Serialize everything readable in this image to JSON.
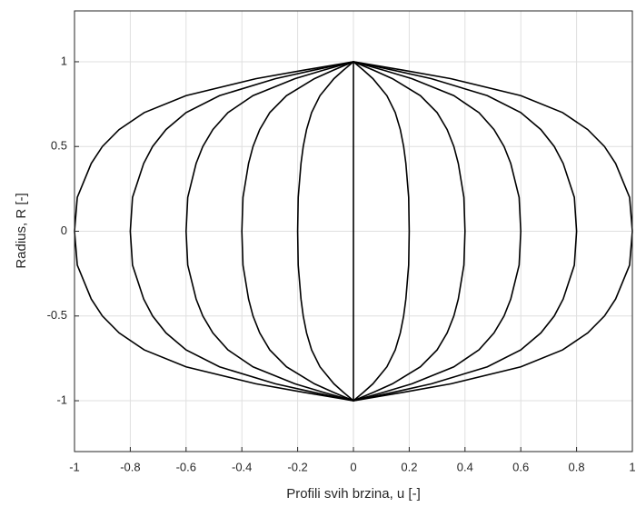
{
  "chart_data": {
    "type": "line",
    "x_label": "Profili svih brzina, u [-]",
    "y_label": "Radius, R [-]",
    "xlim": [
      -1,
      1
    ],
    "xticks": [
      -1,
      -0.8,
      -0.6,
      -0.4,
      -0.2,
      0,
      0.2,
      0.4,
      0.6,
      0.8,
      1
    ],
    "ylim": [
      -1.3,
      1.3
    ],
    "yticks": [
      -1,
      -0.5,
      0,
      0.5,
      1
    ],
    "grid": true,
    "y": [
      -1,
      -0.95,
      -0.9,
      -0.8,
      -0.7,
      -0.6,
      -0.5,
      -0.4,
      -0.2,
      0,
      0.2,
      0.4,
      0.5,
      0.6,
      0.7,
      0.8,
      0.9,
      0.95,
      1
    ],
    "series": [
      {
        "color": "#000000",
        "values": [
          0,
          -0.18,
          -0.35,
          -0.6,
          -0.75,
          -0.84,
          -0.9,
          -0.94,
          -0.99,
          -1,
          -0.99,
          -0.94,
          -0.9,
          -0.84,
          -0.75,
          -0.6,
          -0.35,
          -0.18,
          0
        ]
      },
      {
        "color": "#000000",
        "values": [
          0,
          -0.144,
          -0.28,
          -0.48,
          -0.6,
          -0.672,
          -0.72,
          -0.752,
          -0.792,
          -0.8,
          -0.792,
          -0.752,
          -0.72,
          -0.672,
          -0.6,
          -0.48,
          -0.28,
          -0.144,
          0
        ]
      },
      {
        "color": "#000000",
        "values": [
          0,
          -0.108,
          -0.21,
          -0.36,
          -0.45,
          -0.504,
          -0.54,
          -0.564,
          -0.594,
          -0.6,
          -0.594,
          -0.564,
          -0.54,
          -0.504,
          -0.45,
          -0.36,
          -0.21,
          -0.108,
          0
        ]
      },
      {
        "color": "#000000",
        "values": [
          0,
          -0.072,
          -0.14,
          -0.24,
          -0.3,
          -0.336,
          -0.36,
          -0.376,
          -0.396,
          -0.4,
          -0.396,
          -0.376,
          -0.36,
          -0.336,
          -0.3,
          -0.24,
          -0.14,
          -0.072,
          0
        ]
      },
      {
        "color": "#000000",
        "values": [
          0,
          -0.036,
          -0.07,
          -0.12,
          -0.15,
          -0.168,
          -0.18,
          -0.188,
          -0.198,
          -0.2,
          -0.198,
          -0.188,
          -0.18,
          -0.168,
          -0.15,
          -0.12,
          -0.07,
          -0.036,
          0
        ]
      },
      {
        "color": "#000000",
        "values": [
          0,
          0,
          0,
          0,
          0,
          0,
          0,
          0,
          0,
          0,
          0,
          0,
          0,
          0,
          0,
          0,
          0,
          0,
          0
        ]
      },
      {
        "color": "#000000",
        "values": [
          0,
          0.036,
          0.07,
          0.12,
          0.15,
          0.168,
          0.18,
          0.188,
          0.198,
          0.2,
          0.198,
          0.188,
          0.18,
          0.168,
          0.15,
          0.12,
          0.07,
          0.036,
          0
        ]
      },
      {
        "color": "#000000",
        "values": [
          0,
          0.072,
          0.14,
          0.24,
          0.3,
          0.336,
          0.36,
          0.376,
          0.396,
          0.4,
          0.396,
          0.376,
          0.36,
          0.336,
          0.3,
          0.24,
          0.14,
          0.072,
          0
        ]
      },
      {
        "color": "#000000",
        "values": [
          0,
          0.108,
          0.21,
          0.36,
          0.45,
          0.504,
          0.54,
          0.564,
          0.594,
          0.6,
          0.594,
          0.564,
          0.54,
          0.504,
          0.45,
          0.36,
          0.21,
          0.108,
          0
        ]
      },
      {
        "color": "#000000",
        "values": [
          0,
          0.144,
          0.28,
          0.48,
          0.6,
          0.672,
          0.72,
          0.752,
          0.792,
          0.8,
          0.792,
          0.752,
          0.72,
          0.672,
          0.6,
          0.48,
          0.28,
          0.144,
          0
        ]
      },
      {
        "color": "#000000",
        "values": [
          0,
          0.18,
          0.35,
          0.6,
          0.75,
          0.84,
          0.9,
          0.94,
          0.99,
          1,
          0.99,
          0.94,
          0.9,
          0.84,
          0.75,
          0.6,
          0.35,
          0.18,
          0
        ]
      }
    ]
  }
}
